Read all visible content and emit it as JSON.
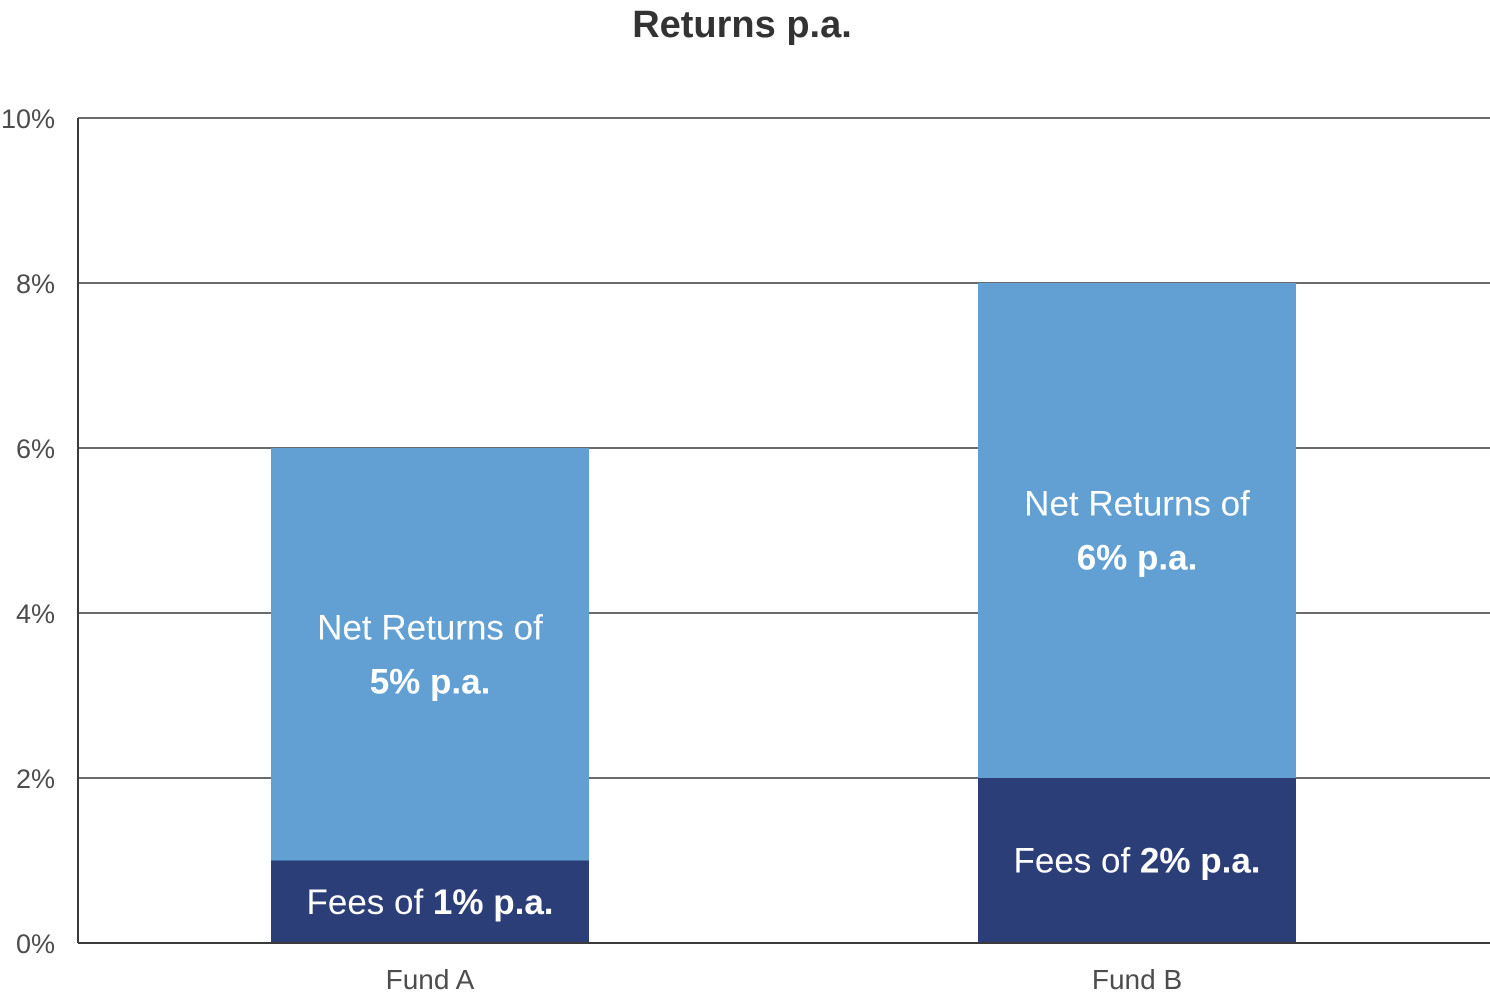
{
  "chart_data": {
    "type": "bar",
    "stacked": true,
    "title": "Returns p.a.",
    "categories": [
      "Fund A",
      "Fund B"
    ],
    "ylim": [
      0,
      10
    ],
    "y_ticks": [
      "0%",
      "2%",
      "4%",
      "6%",
      "8%",
      "10%"
    ],
    "y_tick_values": [
      0,
      2,
      4,
      6,
      8,
      10
    ],
    "grid": true,
    "series": [
      {
        "key": "fees",
        "values": [
          1,
          2
        ],
        "color": "#2c3e78",
        "labels": [
          {
            "lines": [
              {
                "normal": "Fees of ",
                "bold": "1% p.a."
              }
            ]
          },
          {
            "lines": [
              {
                "normal": "Fees of ",
                "bold": "2% p.a."
              }
            ]
          }
        ]
      },
      {
        "key": "net_returns",
        "values": [
          5,
          6
        ],
        "color": "#62a0d4",
        "labels": [
          {
            "lines": [
              {
                "normal": "Net Returns of",
                "bold": ""
              },
              {
                "normal": "",
                "bold": "5% p.a."
              }
            ]
          },
          {
            "lines": [
              {
                "normal": "Net Returns of",
                "bold": ""
              },
              {
                "normal": "",
                "bold": "6% p.a."
              }
            ]
          }
        ]
      }
    ]
  }
}
